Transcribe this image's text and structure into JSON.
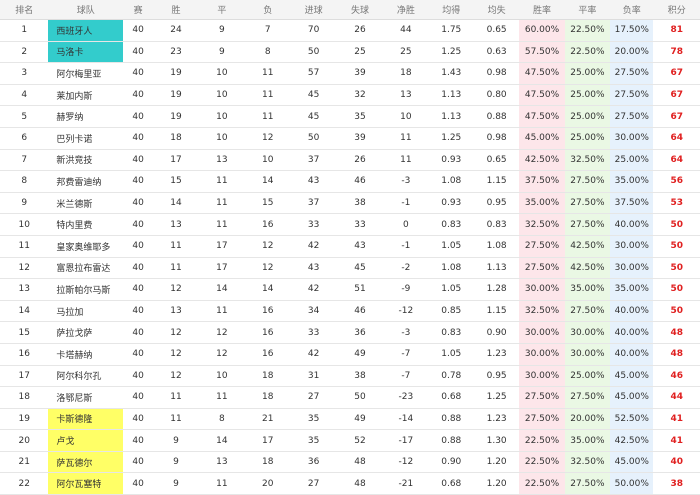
{
  "table": {
    "headers": [
      "排名",
      "球队",
      "赛",
      "胜",
      "平",
      "负",
      "进球",
      "失球",
      "净胜",
      "均得",
      "均失",
      "胜率",
      "平率",
      "负率",
      "积分"
    ],
    "rows": [
      [
        "1",
        "西班牙人",
        "40",
        "24",
        "9",
        "7",
        "70",
        "26",
        "44",
        "1.75",
        "0.65",
        "60.00%",
        "22.50%",
        "17.50%",
        "81"
      ],
      [
        "2",
        "马洛卡",
        "40",
        "23",
        "9",
        "8",
        "50",
        "25",
        "25",
        "1.25",
        "0.63",
        "57.50%",
        "22.50%",
        "20.00%",
        "78"
      ],
      [
        "3",
        "阿尔梅里亚",
        "40",
        "19",
        "10",
        "11",
        "57",
        "39",
        "18",
        "1.43",
        "0.98",
        "47.50%",
        "25.00%",
        "27.50%",
        "67"
      ],
      [
        "4",
        "莱加内斯",
        "40",
        "19",
        "10",
        "11",
        "45",
        "32",
        "13",
        "1.13",
        "0.80",
        "47.50%",
        "25.00%",
        "27.50%",
        "67"
      ],
      [
        "5",
        "赫罗纳",
        "40",
        "19",
        "10",
        "11",
        "45",
        "35",
        "10",
        "1.13",
        "0.88",
        "47.50%",
        "25.00%",
        "27.50%",
        "67"
      ],
      [
        "6",
        "巴列卡诺",
        "40",
        "18",
        "10",
        "12",
        "50",
        "39",
        "11",
        "1.25",
        "0.98",
        "45.00%",
        "25.00%",
        "30.00%",
        "64"
      ],
      [
        "7",
        "新洪竞技",
        "40",
        "17",
        "13",
        "10",
        "37",
        "26",
        "11",
        "0.93",
        "0.65",
        "42.50%",
        "32.50%",
        "25.00%",
        "64"
      ],
      [
        "8",
        "邦费雷迪纳",
        "40",
        "15",
        "11",
        "14",
        "43",
        "46",
        "-3",
        "1.08",
        "1.15",
        "37.50%",
        "27.50%",
        "35.00%",
        "56"
      ],
      [
        "9",
        "米兰德斯",
        "40",
        "14",
        "11",
        "15",
        "37",
        "38",
        "-1",
        "0.93",
        "0.95",
        "35.00%",
        "27.50%",
        "37.50%",
        "53"
      ],
      [
        "10",
        "特内里费",
        "40",
        "13",
        "11",
        "16",
        "33",
        "33",
        "0",
        "0.83",
        "0.83",
        "32.50%",
        "27.50%",
        "40.00%",
        "50"
      ],
      [
        "11",
        "皇家奥维耶多",
        "40",
        "11",
        "17",
        "12",
        "42",
        "43",
        "-1",
        "1.05",
        "1.08",
        "27.50%",
        "42.50%",
        "30.00%",
        "50"
      ],
      [
        "12",
        "富恩拉布雷达",
        "40",
        "11",
        "17",
        "12",
        "43",
        "45",
        "-2",
        "1.08",
        "1.13",
        "27.50%",
        "42.50%",
        "30.00%",
        "50"
      ],
      [
        "13",
        "拉斯帕尔马斯",
        "40",
        "12",
        "14",
        "14",
        "42",
        "51",
        "-9",
        "1.05",
        "1.28",
        "30.00%",
        "35.00%",
        "35.00%",
        "50"
      ],
      [
        "14",
        "马拉加",
        "40",
        "13",
        "11",
        "16",
        "34",
        "46",
        "-12",
        "0.85",
        "1.15",
        "32.50%",
        "27.50%",
        "40.00%",
        "50"
      ],
      [
        "15",
        "萨拉戈萨",
        "40",
        "12",
        "12",
        "16",
        "33",
        "36",
        "-3",
        "0.83",
        "0.90",
        "30.00%",
        "30.00%",
        "40.00%",
        "48"
      ],
      [
        "16",
        "卡塔赫纳",
        "40",
        "12",
        "12",
        "16",
        "42",
        "49",
        "-7",
        "1.05",
        "1.23",
        "30.00%",
        "30.00%",
        "40.00%",
        "48"
      ],
      [
        "17",
        "阿尔科尔孔",
        "40",
        "12",
        "10",
        "18",
        "31",
        "38",
        "-7",
        "0.78",
        "0.95",
        "30.00%",
        "25.00%",
        "45.00%",
        "46"
      ],
      [
        "18",
        "洛鄂尼斯",
        "40",
        "11",
        "11",
        "18",
        "27",
        "50",
        "-23",
        "0.68",
        "1.25",
        "27.50%",
        "27.50%",
        "45.00%",
        "44"
      ],
      [
        "19",
        "卡斯德隆",
        "40",
        "11",
        "8",
        "21",
        "35",
        "49",
        "-14",
        "0.88",
        "1.23",
        "27.50%",
        "20.00%",
        "52.50%",
        "41"
      ],
      [
        "20",
        "卢戈",
        "40",
        "9",
        "14",
        "17",
        "35",
        "52",
        "-17",
        "0.88",
        "1.30",
        "22.50%",
        "35.00%",
        "42.50%",
        "41"
      ],
      [
        "21",
        "萨瓦德尔",
        "40",
        "9",
        "13",
        "18",
        "36",
        "48",
        "-12",
        "0.90",
        "1.20",
        "22.50%",
        "32.50%",
        "45.00%",
        "40"
      ],
      [
        "22",
        "阿尔瓦塞特",
        "40",
        "9",
        "11",
        "20",
        "27",
        "48",
        "-21",
        "0.68",
        "1.20",
        "22.50%",
        "27.50%",
        "50.00%",
        "38"
      ]
    ],
    "team_highlights": [
      "#33cccc",
      "#33cccc",
      null,
      null,
      null,
      null,
      null,
      null,
      null,
      null,
      null,
      null,
      null,
      null,
      null,
      null,
      null,
      null,
      "#ffff66",
      "#ffff66",
      "#ffff66",
      "#ffff66"
    ]
  }
}
